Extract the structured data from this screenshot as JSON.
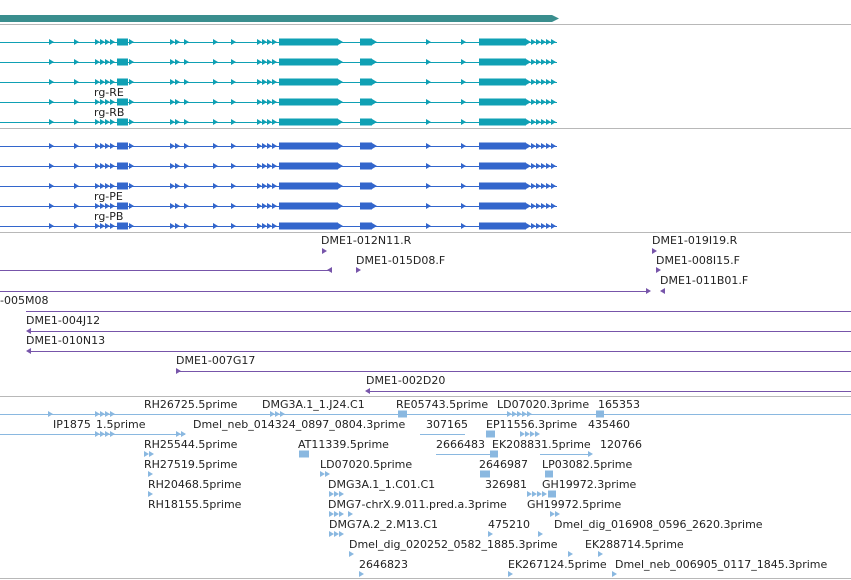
{
  "colors": {
    "gene_bar": "#3a8e8e",
    "transcript_cds": "#0fa0b4",
    "protein": "#3366cc",
    "bac_end": "#7755aa",
    "est": "#8ab8e0",
    "separator": "#b8b8b8",
    "label": "#222222"
  },
  "tracks": {
    "transcripts": {
      "name_labels": [
        "rg-RE",
        "rg-RB"
      ]
    },
    "proteins": {
      "name_labels": [
        "rg-PE",
        "rg-PB"
      ]
    },
    "bac_ends": {
      "labels": [
        "DME1-012N11.R",
        "DME1-015D08.F",
        "DME1-019I19.R",
        "DME1-008I15.F",
        "DME1-011B01.F",
        "-005M08",
        "DME1-004J12",
        "DME1-010N13",
        "DME1-007G17",
        "DME1-002D20"
      ]
    },
    "ests": {
      "labels": [
        "RH26725.5prime",
        "DMG3A.1_1.J24.C1",
        "RE05743.5prime",
        "LD07020.3prime",
        "165353",
        "IP1875",
        "1.5prime",
        "Dmel_neb_014324_0897_0804.3prime",
        "307165",
        "EP11556.3prime",
        "435460",
        "RH25544.5prime",
        "AT11339.5prime",
        "2666483",
        "EK208831.5prime",
        "120766",
        "RH27519.5prime",
        "LD07020.5prime",
        "2646987",
        "LP03082.5prime",
        "RH20468.5prime",
        "DMG3A.1_1.C01.C1",
        "326981",
        "GH19972.3prime",
        "RH18155.5prime",
        "DMG7-chrX.9.011.pred.a.3prime",
        "GH19972.5prime",
        "DMG7A.2_2.M13.C1",
        "475210",
        "Dmel_dig_016908_0596_2620.3prime",
        "Dmel_dig_020252_0582_1885.3prime",
        "EK288714.5prime",
        "2646823",
        "EK267124.5prime",
        "Dmel_neb_006905_0117_1845.3prime"
      ]
    }
  }
}
